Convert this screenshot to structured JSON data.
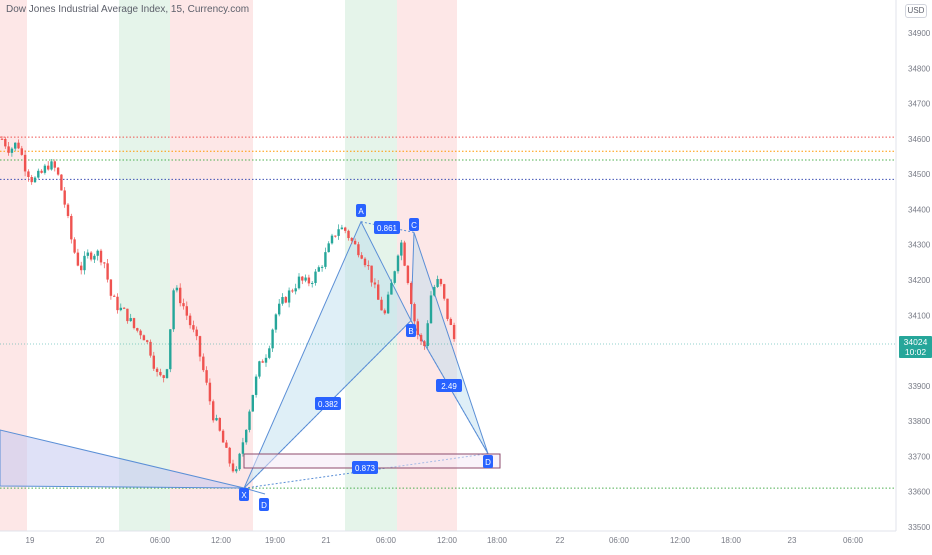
{
  "header": {
    "title": "Dow Jones Industrial Average Index, 15, Currency.com",
    "currency": "USD"
  },
  "price_axis": {
    "ticks": [
      "34900",
      "34800",
      "34700",
      "34600",
      "34500",
      "34400",
      "34300",
      "34200",
      "34100",
      "34000",
      "33900",
      "33800",
      "33700",
      "33600",
      "33500"
    ],
    "current_price": "34024",
    "countdown": "10:02"
  },
  "time_axis": {
    "ticks": [
      "19",
      "20",
      "06:00",
      "12:00",
      "19:00",
      "21",
      "06:00",
      "12:00",
      "18:00",
      "22",
      "06:00",
      "12:00",
      "18:00",
      "23",
      "06:00"
    ]
  },
  "colors": {
    "up": "#26a69a",
    "down": "#ef5350",
    "session_red": "#fde7e7",
    "session_green": "#e5f4ea",
    "pattern_fill": "#b9dcee",
    "pattern_line": "#5b8fd6",
    "label_bg": "#2962ff",
    "price_badge": "#26a69a"
  },
  "pattern": {
    "points": [
      "X",
      "A",
      "B",
      "C",
      "D"
    ],
    "ratios": [
      "0.382",
      "0.861",
      "2.49",
      "0.873"
    ],
    "secondary_d": "D"
  },
  "chart_data": {
    "type": "candlestick",
    "title": "Dow Jones Industrial Average Index, 15, Currency.com",
    "ylim": [
      33500,
      34950
    ],
    "last_price": 34024,
    "horizontal_levels": [
      {
        "price": 34605,
        "color": "#ef5350"
      },
      {
        "price": 34565,
        "color": "#ff9800"
      },
      {
        "price": 34540,
        "color": "#4caf50"
      },
      {
        "price": 34485,
        "color": "#3f51b5"
      },
      {
        "price": 33610,
        "color": "#4caf50"
      }
    ],
    "harmonic_pattern": {
      "X": 33610,
      "A": 34365,
      "B": 34085,
      "C": 34335,
      "D": 33708
    },
    "price_path": [
      34600,
      34570,
      34590,
      34520,
      34480,
      34500,
      34530,
      34510,
      34420,
      34300,
      34230,
      34270,
      34280,
      34260,
      34150,
      34120,
      34100,
      34060,
      34050,
      34000,
      33920,
      33930,
      34180,
      34140,
      34080,
      34020,
      33920,
      33820,
      33760,
      33690,
      33650,
      33760,
      33870,
      33960,
      34000,
      34100,
      34140,
      34170,
      34200,
      34190,
      34210,
      34250,
      34300,
      34350,
      34340,
      34300,
      34280,
      34230,
      34150,
      34100,
      34200,
      34320,
      34200,
      34060,
      34000,
      34170,
      34200,
      34100,
      34024
    ]
  }
}
